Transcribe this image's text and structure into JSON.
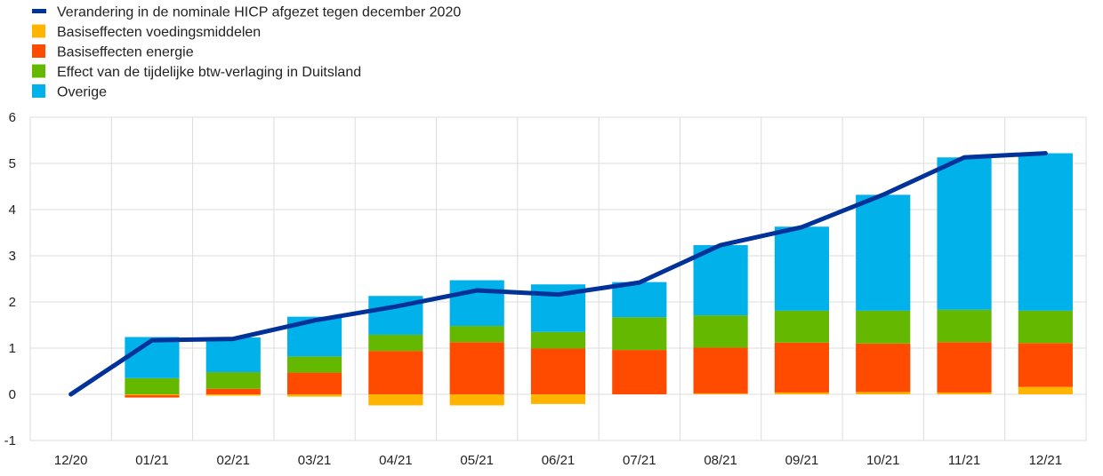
{
  "chart_data": {
    "type": "bar",
    "categories": [
      "12/20",
      "01/21",
      "02/21",
      "03/21",
      "04/21",
      "05/21",
      "06/21",
      "07/21",
      "08/21",
      "09/21",
      "10/21",
      "11/21",
      "12/21"
    ],
    "ylim": [
      -1,
      6
    ],
    "yticks": [
      -1,
      0,
      1,
      2,
      3,
      4,
      5,
      6
    ],
    "grid": true,
    "legend_placement": "top-left",
    "stacked": true,
    "series": [
      {
        "name": "Basiseffecten voedingsmiddelen",
        "kind": "bar",
        "color": "#ffb400",
        "values": [
          0,
          -0.02,
          -0.03,
          -0.05,
          -0.24,
          -0.24,
          -0.21,
          0.0,
          0.02,
          0.04,
          0.05,
          0.04,
          0.16
        ]
      },
      {
        "name": "Basiseffecten energie",
        "kind": "bar",
        "color": "#ff4b00",
        "values": [
          0,
          -0.05,
          0.12,
          0.47,
          0.94,
          1.13,
          0.99,
          0.96,
          0.99,
          1.08,
          1.05,
          1.09,
          0.95
        ]
      },
      {
        "name": "Effect van de tijdelijke btw-verlaging in Duitsland",
        "kind": "bar",
        "color": "#65b800",
        "values": [
          0,
          0.35,
          0.36,
          0.35,
          0.35,
          0.35,
          0.36,
          0.71,
          0.7,
          0.69,
          0.71,
          0.7,
          0.7
        ]
      },
      {
        "name": "Overige",
        "kind": "bar",
        "color": "#00b1ea",
        "values": [
          0,
          0.89,
          0.75,
          0.86,
          0.84,
          0.99,
          1.03,
          0.76,
          1.52,
          1.82,
          2.51,
          3.3,
          3.41
        ]
      },
      {
        "name": "Verandering in de nominale HICP afgezet tegen december 2020",
        "kind": "line",
        "color": "#003299",
        "values": [
          0,
          1.17,
          1.2,
          1.6,
          1.9,
          2.25,
          2.16,
          2.42,
          3.23,
          3.62,
          4.32,
          5.13,
          5.22
        ]
      }
    ],
    "legend_order": [
      4,
      0,
      1,
      2,
      3
    ]
  }
}
